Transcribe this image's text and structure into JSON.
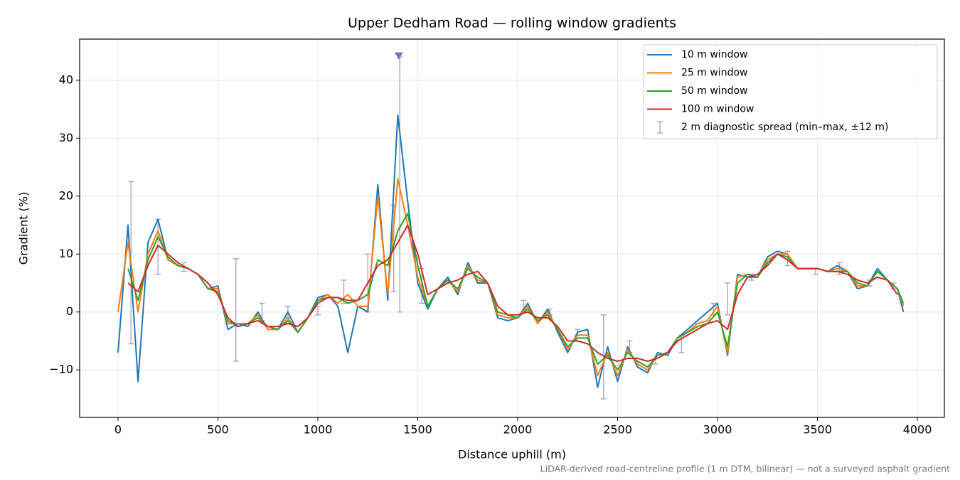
{
  "chart_data": {
    "type": "line",
    "title": "Upper Dedham Road — rolling window gradients",
    "xlabel": "Distance uphill (m)",
    "ylabel": "Gradient (%)",
    "footnote": "LiDAR-derived road-centreline profile (1 m DTM, bilinear) — not a surveyed asphalt gradient",
    "xlim": [
      -192,
      4135
    ],
    "ylim": [
      -18.2,
      47.1
    ],
    "xticks": [
      0,
      500,
      1000,
      1500,
      2000,
      2500,
      3000,
      3500,
      4000
    ],
    "yticks": [
      {
        "value": -10,
        "label": "−10"
      },
      0,
      10,
      20,
      30,
      40
    ],
    "grid": true,
    "legend": "upper right",
    "x": [
      0,
      50,
      100,
      150,
      200,
      250,
      300,
      350,
      400,
      450,
      500,
      550,
      600,
      650,
      700,
      750,
      800,
      850,
      900,
      950,
      1000,
      1050,
      1100,
      1150,
      1200,
      1250,
      1300,
      1350,
      1400,
      1450,
      1500,
      1550,
      1600,
      1650,
      1700,
      1750,
      1800,
      1850,
      1900,
      1950,
      2000,
      2050,
      2100,
      2150,
      2200,
      2250,
      2300,
      2350,
      2400,
      2450,
      2500,
      2550,
      2600,
      2650,
      2700,
      2750,
      2800,
      2850,
      2900,
      2950,
      3000,
      3050,
      3100,
      3150,
      3200,
      3250,
      3300,
      3350,
      3400,
      3450,
      3500,
      3550,
      3600,
      3650,
      3700,
      3750,
      3800,
      3850,
      3900,
      3930
    ],
    "series": [
      {
        "name": "10 m window",
        "color": "#1f77b4",
        "values": [
          -7,
          15,
          -12,
          12,
          16,
          9,
          8,
          7.5,
          6.5,
          4,
          4.5,
          -3,
          -2,
          -2.5,
          0,
          -3,
          -3,
          0,
          -3.5,
          -1,
          2.5,
          3,
          1,
          -7,
          1,
          0,
          22,
          2,
          34,
          19,
          5,
          0.5,
          4,
          6,
          3,
          8.5,
          5,
          5,
          -1,
          -1.5,
          -1,
          1.5,
          -2,
          0.5,
          -3.5,
          -7,
          -3.5,
          -3,
          -13,
          -6,
          -12,
          -6,
          -9.5,
          -10.5,
          -7,
          -7.5,
          -4.5,
          -3,
          -1.5,
          0,
          1.5,
          -7.5,
          6.5,
          6,
          6,
          9.5,
          10.5,
          10,
          7.5,
          7.5,
          7.5,
          7,
          8,
          7,
          4,
          4.5,
          7.5,
          5.5,
          4,
          0
        ]
      },
      {
        "name": "25 m window",
        "color": "#ff7f0e",
        "values": [
          0,
          12,
          0,
          10,
          14,
          9,
          8,
          7.5,
          6.5,
          4,
          4,
          -2,
          -2,
          -2,
          -0.5,
          -3,
          -3,
          -1,
          -3.5,
          -1,
          2,
          3,
          1.5,
          3,
          1,
          1,
          20,
          3,
          23,
          15,
          6,
          1,
          4,
          5.5,
          3.5,
          8,
          5.5,
          5,
          -0.5,
          -1,
          -1,
          1,
          -2,
          0,
          -3,
          -6.5,
          -4,
          -4,
          -11,
          -7,
          -11,
          -6.5,
          -9,
          -10,
          -7.5,
          -7,
          -4.5,
          -3.5,
          -2,
          -1.5,
          1,
          -7,
          6,
          6.5,
          6,
          9,
          10,
          10,
          7.5,
          7.5,
          7.5,
          7,
          7.5,
          7,
          4.5,
          4.5,
          7,
          5.5,
          4,
          1
        ]
      },
      {
        "name": "50 m window",
        "color": "#2ca02c",
        "values": [
          null,
          7.5,
          2,
          9,
          13,
          9.5,
          8,
          7.5,
          6.5,
          4,
          3.5,
          -1.5,
          -2.5,
          -2,
          -1,
          -2.5,
          -3,
          -1.5,
          -3.5,
          -1,
          2,
          2.5,
          2.5,
          1.5,
          2,
          3,
          9,
          8,
          14,
          17,
          8,
          1,
          4,
          5.5,
          4,
          7.5,
          6,
          5,
          0,
          -0.5,
          -1,
          0.5,
          -1.5,
          -0.5,
          -3,
          -6,
          -4.5,
          -4.5,
          -9,
          -7.5,
          -10,
          -7,
          -8.5,
          -9.5,
          -7.5,
          -7,
          -4.5,
          -3.5,
          -2.5,
          -2,
          0,
          -6,
          5,
          6.5,
          6,
          8.5,
          10,
          9.5,
          7.5,
          7.5,
          7.5,
          7,
          7,
          7,
          5,
          4.5,
          7,
          5.5,
          4,
          1.5
        ]
      },
      {
        "name": "100 m window",
        "color": "#d62728",
        "values": [
          null,
          5,
          3.5,
          8,
          11.5,
          10,
          8.5,
          7.5,
          6.5,
          5,
          3,
          -1,
          -2.5,
          -2,
          -1.5,
          -2.5,
          -2.5,
          -2,
          -2.5,
          -1,
          1.5,
          2.5,
          2.5,
          2,
          2,
          5,
          8,
          9,
          12,
          15,
          10,
          3,
          4,
          5,
          5.5,
          6.5,
          7,
          5,
          1,
          -0.5,
          -0.5,
          0,
          -1,
          -1,
          -2.5,
          -5,
          -5,
          -5.5,
          -7,
          -8,
          -8.5,
          -8,
          -8,
          -8.5,
          -8,
          -7,
          -5,
          -4,
          -3,
          -2,
          -1.5,
          -3,
          3,
          6,
          6.5,
          8,
          10,
          9,
          7.5,
          7.5,
          7.5,
          7,
          7,
          6.5,
          5.5,
          5,
          6,
          5.5,
          3,
          null
        ]
      }
    ],
    "errorbars": {
      "name": "2 m diagnostic spread (min–max, ±12 m)",
      "color": "#a39fc4",
      "x": [
        65,
        200,
        330,
        590,
        720,
        850,
        1000,
        1130,
        1250,
        1380,
        1410,
        1520,
        2030,
        2160,
        2300,
        2430,
        2560,
        2690,
        2820,
        2980,
        3050,
        3170,
        3350,
        3490,
        3610,
        3760,
        3880
      ],
      "low": [
        -5.5,
        6.5,
        7,
        -8.5,
        -1.5,
        -1,
        -0.5,
        1.5,
        0,
        3.5,
        0,
        1.5,
        0.5,
        -0.5,
        -4,
        -15,
        -7,
        -9,
        -7,
        -0.5,
        -0.5,
        5.5,
        8,
        6.5,
        6.5,
        4.5,
        4
      ],
      "high": [
        22.5,
        16,
        8.5,
        9.2,
        1.5,
        1,
        1,
        5.5,
        10,
        18.5,
        44,
        7.5,
        2,
        0.5,
        -3,
        -0.5,
        -5,
        -8,
        -4,
        1.5,
        5,
        6.5,
        10.5,
        7.5,
        8.5,
        5.5,
        5
      ]
    },
    "outlier": {
      "x": 1405,
      "y": 44.2,
      "color": "#8c6bb1"
    }
  }
}
